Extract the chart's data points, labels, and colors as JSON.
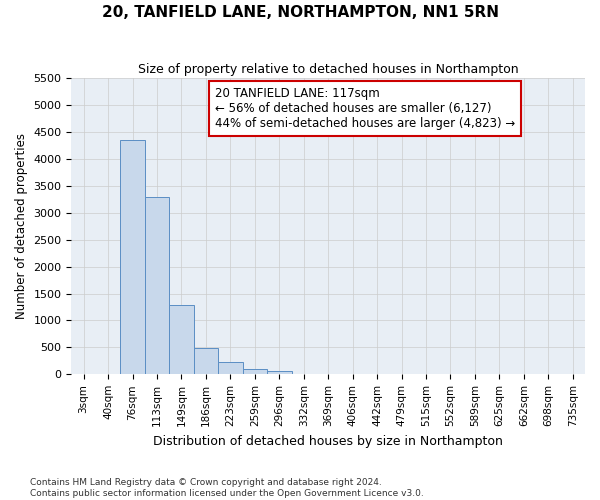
{
  "title": "20, TANFIELD LANE, NORTHAMPTON, NN1 5RN",
  "subtitle": "Size of property relative to detached houses in Northampton",
  "xlabel": "Distribution of detached houses by size in Northampton",
  "ylabel": "Number of detached properties",
  "categories": [
    "3sqm",
    "40sqm",
    "76sqm",
    "113sqm",
    "149sqm",
    "186sqm",
    "223sqm",
    "259sqm",
    "296sqm",
    "332sqm",
    "369sqm",
    "406sqm",
    "442sqm",
    "479sqm",
    "515sqm",
    "552sqm",
    "589sqm",
    "625sqm",
    "662sqm",
    "698sqm",
    "735sqm"
  ],
  "bar_values": [
    0,
    0,
    4350,
    3300,
    1280,
    490,
    230,
    90,
    60,
    0,
    0,
    0,
    0,
    0,
    0,
    0,
    0,
    0,
    0,
    0,
    0
  ],
  "bar_color": "#c8d8eb",
  "bar_edge_color": "#5b8ec4",
  "vline_color": "#cc0000",
  "annotation_line1": "20 TANFIELD LANE: 117sqm",
  "annotation_line2": "← 56% of detached houses are smaller (6,127)",
  "annotation_line3": "44% of semi-detached houses are larger (4,823) →",
  "ann_box_facecolor": "#ffffff",
  "ann_box_edgecolor": "#cc0000",
  "ylim_max": 5500,
  "yticks": [
    0,
    500,
    1000,
    1500,
    2000,
    2500,
    3000,
    3500,
    4000,
    4500,
    5000,
    5500
  ],
  "grid_color": "#cccccc",
  "bg_color": "#e8eef5",
  "footer_line1": "Contains HM Land Registry data © Crown copyright and database right 2024.",
  "footer_line2": "Contains public sector information licensed under the Open Government Licence v3.0."
}
